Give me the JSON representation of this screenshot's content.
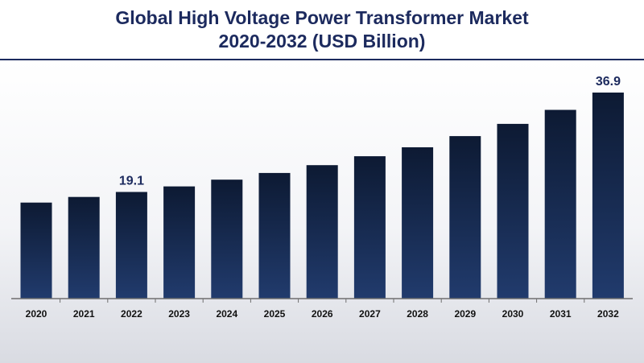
{
  "title": {
    "line1": "Global High Voltage Power Transformer Market",
    "line2": "2020-2032 (USD Billion)"
  },
  "colors": {
    "title": "#1c2a5e",
    "bar_top": "#0d1a33",
    "bar_bottom": "#213b6d",
    "axis": "#6f6f6f"
  },
  "chart_data": {
    "type": "bar",
    "categories": [
      "2020",
      "2021",
      "2022",
      "2023",
      "2024",
      "2025",
      "2026",
      "2027",
      "2028",
      "2029",
      "2030",
      "2031",
      "2032"
    ],
    "values": [
      17.2,
      18.2,
      19.1,
      20.1,
      21.3,
      22.5,
      23.9,
      25.5,
      27.1,
      29.1,
      31.3,
      33.8,
      36.9
    ],
    "data_labels": [
      {
        "index": 2,
        "text": "19.1"
      },
      {
        "index": 12,
        "text": "36.9"
      }
    ],
    "xlabel": "",
    "ylabel": "",
    "ylim": [
      0,
      40
    ],
    "grid": false,
    "legend": "none"
  }
}
